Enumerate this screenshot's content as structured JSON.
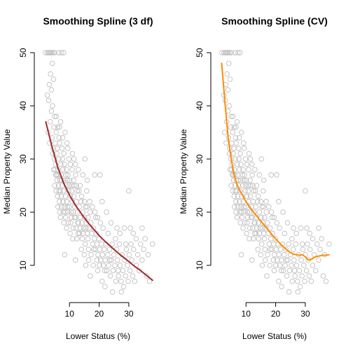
{
  "chart_data": [
    {
      "type": "scatter",
      "title": "Smoothing Spline (3 df)",
      "xlabel": "Lower Status (%)",
      "ylabel": "Median Property Value",
      "xlim": [
        0.5,
        39
      ],
      "ylim": [
        3,
        52
      ],
      "x_ticks": [
        10,
        20,
        30
      ],
      "y_ticks": [
        10,
        20,
        30,
        40,
        50
      ],
      "grid": false,
      "point_color": "#bebebe",
      "series": [
        {
          "type": "line",
          "color": "#a52a2a",
          "x": [
            2,
            4,
            6,
            8,
            10,
            12,
            14,
            16,
            18,
            20,
            22,
            24,
            26,
            28,
            30,
            32,
            34,
            36,
            38
          ],
          "y": [
            37.0,
            32.5,
            28.5,
            25.5,
            23.2,
            21.3,
            19.7,
            18.2,
            16.9,
            15.6,
            14.5,
            13.5,
            12.5,
            11.6,
            10.7,
            9.8,
            9.0,
            8.1,
            7.2
          ]
        }
      ]
    },
    {
      "type": "scatter",
      "title": "Smoothing Spline (CV)",
      "xlabel": "Lower Status (%)",
      "ylabel": "Median Property Value",
      "xlim": [
        0.5,
        39
      ],
      "ylim": [
        3,
        52
      ],
      "x_ticks": [
        10,
        20,
        30
      ],
      "y_ticks": [
        10,
        20,
        30,
        40,
        50
      ],
      "grid": false,
      "point_color": "#bebebe",
      "series": [
        {
          "type": "line",
          "color": "#ff8c00",
          "x": [
            1.8,
            3,
            4,
            5,
            6,
            7,
            8,
            9,
            10,
            11,
            12,
            13,
            14,
            15,
            16,
            17,
            18,
            19,
            20,
            21,
            22,
            23,
            24,
            25,
            26,
            27,
            28,
            29,
            30,
            31,
            32,
            33,
            34,
            35,
            36,
            37,
            38
          ],
          "y": [
            48.0,
            40.0,
            34.0,
            30.0,
            27.0,
            25.2,
            24.0,
            23.0,
            22.0,
            21.2,
            20.4,
            19.7,
            19.0,
            18.3,
            17.7,
            17.0,
            16.3,
            15.6,
            15.0,
            14.4,
            13.8,
            13.3,
            12.8,
            12.4,
            12.1,
            12.0,
            11.9,
            12.0,
            11.6,
            11.0,
            11.1,
            11.5,
            11.7,
            11.8,
            11.9,
            11.9,
            12.0
          ]
        }
      ]
    }
  ],
  "scatter_points": [
    [
      1.9,
      50
    ],
    [
      2.6,
      50
    ],
    [
      3.0,
      50
    ],
    [
      3.3,
      50
    ],
    [
      3.7,
      50
    ],
    [
      4.0,
      50
    ],
    [
      4.5,
      50
    ],
    [
      5.0,
      50
    ],
    [
      6.3,
      50
    ],
    [
      7.3,
      50
    ],
    [
      8.0,
      50
    ],
    [
      2.5,
      42
    ],
    [
      3.0,
      41
    ],
    [
      3.2,
      44
    ],
    [
      3.6,
      46
    ],
    [
      3.9,
      43
    ],
    [
      4.2,
      48
    ],
    [
      4.6,
      45
    ],
    [
      5.0,
      38
    ],
    [
      3.5,
      37
    ],
    [
      4.8,
      36
    ],
    [
      5.5,
      35
    ],
    [
      2.8,
      35
    ],
    [
      3.3,
      33
    ],
    [
      4.1,
      34
    ],
    [
      4.5,
      32
    ],
    [
      5.2,
      33
    ],
    [
      5.7,
      31
    ],
    [
      6.0,
      36
    ],
    [
      6.5,
      34
    ],
    [
      7.0,
      37
    ],
    [
      7.5,
      32
    ],
    [
      8.1,
      31
    ],
    [
      8.5,
      35
    ],
    [
      9.2,
      33
    ],
    [
      9.8,
      30
    ],
    [
      4.9,
      30
    ],
    [
      5.3,
      29
    ],
    [
      6.1,
      28
    ],
    [
      6.4,
      30
    ],
    [
      7.1,
      29
    ],
    [
      7.8,
      28
    ],
    [
      8.3,
      29
    ],
    [
      9.0,
      28
    ],
    [
      9.5,
      27
    ],
    [
      10.3,
      29
    ],
    [
      11.0,
      31
    ],
    [
      11.5,
      30
    ],
    [
      12.1,
      27
    ],
    [
      13.0,
      28
    ],
    [
      14.5,
      27
    ],
    [
      15.2,
      30
    ],
    [
      16.0,
      26
    ],
    [
      18.5,
      27
    ],
    [
      5.0,
      25
    ],
    [
      5.5,
      24
    ],
    [
      5.8,
      26
    ],
    [
      6.0,
      23
    ],
    [
      6.3,
      25
    ],
    [
      6.6,
      22
    ],
    [
      6.9,
      24
    ],
    [
      7.2,
      23
    ],
    [
      7.5,
      25
    ],
    [
      7.8,
      22
    ],
    [
      8.0,
      24
    ],
    [
      8.3,
      21
    ],
    [
      8.6,
      23
    ],
    [
      8.9,
      25
    ],
    [
      9.1,
      22
    ],
    [
      9.4,
      20
    ],
    [
      9.7,
      24
    ],
    [
      10.0,
      21
    ],
    [
      10.3,
      23
    ],
    [
      10.6,
      19
    ],
    [
      10.9,
      22
    ],
    [
      11.2,
      20
    ],
    [
      11.5,
      23
    ],
    [
      11.8,
      21
    ],
    [
      12.1,
      19
    ],
    [
      12.4,
      22
    ],
    [
      12.7,
      20
    ],
    [
      13.0,
      18
    ],
    [
      13.3,
      21
    ],
    [
      13.6,
      19
    ],
    [
      13.9,
      22
    ],
    [
      14.2,
      18
    ],
    [
      14.5,
      20
    ],
    [
      14.8,
      17
    ],
    [
      15.1,
      19
    ],
    [
      15.4,
      21
    ],
    [
      15.7,
      18
    ],
    [
      16.0,
      16
    ],
    [
      16.3,
      19
    ],
    [
      16.6,
      17
    ],
    [
      16.9,
      20
    ],
    [
      5.7,
      27
    ],
    [
      6.2,
      27
    ],
    [
      6.8,
      26
    ],
    [
      7.4,
      26
    ],
    [
      8.2,
      26
    ],
    [
      9.3,
      26
    ],
    [
      10.1,
      26
    ],
    [
      10.8,
      25
    ],
    [
      11.6,
      25
    ],
    [
      12.6,
      24
    ],
    [
      6.1,
      21
    ],
    [
      6.7,
      20
    ],
    [
      7.3,
      21
    ],
    [
      7.9,
      20
    ],
    [
      8.7,
      19
    ],
    [
      9.6,
      18
    ],
    [
      10.4,
      18
    ],
    [
      11.3,
      17
    ],
    [
      12.2,
      17
    ],
    [
      12.9,
      16
    ],
    [
      7.0,
      19
    ],
    [
      8.1,
      18
    ],
    [
      9.0,
      17
    ],
    [
      10.2,
      16
    ],
    [
      11.1,
      15
    ],
    [
      12.5,
      15
    ],
    [
      13.4,
      16
    ],
    [
      14.3,
      15
    ],
    [
      15.3,
      14
    ],
    [
      16.2,
      15
    ],
    [
      17.2,
      18
    ],
    [
      17.5,
      16
    ],
    [
      17.8,
      14
    ],
    [
      18.1,
      17
    ],
    [
      18.4,
      15
    ],
    [
      18.7,
      13
    ],
    [
      19.0,
      16
    ],
    [
      19.3,
      14
    ],
    [
      19.6,
      12
    ],
    [
      19.9,
      15
    ],
    [
      20.2,
      13
    ],
    [
      20.5,
      11
    ],
    [
      20.8,
      14
    ],
    [
      21.1,
      12
    ],
    [
      21.4,
      10
    ],
    [
      21.7,
      13
    ],
    [
      22.0,
      11
    ],
    [
      22.3,
      14
    ],
    [
      22.6,
      9
    ],
    [
      22.9,
      12
    ],
    [
      23.2,
      10
    ],
    [
      23.5,
      13
    ],
    [
      23.8,
      8
    ],
    [
      24.1,
      11
    ],
    [
      24.4,
      14
    ],
    [
      24.7,
      9
    ],
    [
      25.0,
      12
    ],
    [
      25.3,
      10
    ],
    [
      25.6,
      7
    ],
    [
      25.9,
      13
    ],
    [
      26.2,
      11
    ],
    [
      26.5,
      8
    ],
    [
      26.8,
      14
    ],
    [
      27.1,
      10
    ],
    [
      27.4,
      7
    ],
    [
      27.7,
      12
    ],
    [
      28.0,
      9
    ],
    [
      28.3,
      6
    ],
    [
      28.6,
      11
    ],
    [
      28.9,
      8
    ],
    [
      29.2,
      13
    ],
    [
      29.5,
      10
    ],
    [
      29.8,
      7
    ],
    [
      30.1,
      12
    ],
    [
      30.4,
      9
    ],
    [
      30.7,
      14
    ],
    [
      31.0,
      11
    ],
    [
      31.3,
      8
    ],
    [
      31.6,
      13
    ],
    [
      32.0,
      7
    ],
    [
      32.5,
      10
    ],
    [
      33.0,
      12
    ],
    [
      33.5,
      9
    ],
    [
      34.0,
      14
    ],
    [
      34.5,
      11
    ],
    [
      35.0,
      13
    ],
    [
      36.0,
      8
    ],
    [
      37.0,
      7
    ],
    [
      38.0,
      14
    ],
    [
      30.0,
      24
    ],
    [
      20.3,
      27
    ],
    [
      21.0,
      22
    ],
    [
      22.5,
      20
    ],
    [
      24.0,
      18
    ],
    [
      26.0,
      17
    ],
    [
      27.0,
      16
    ],
    [
      28.5,
      17
    ],
    [
      30.5,
      17
    ],
    [
      32.5,
      15
    ],
    [
      35.5,
      15
    ],
    [
      14.0,
      13
    ],
    [
      15.0,
      12
    ],
    [
      16.5,
      11
    ],
    [
      18.0,
      10
    ],
    [
      19.5,
      9
    ],
    [
      17.0,
      8
    ],
    [
      21.0,
      7
    ],
    [
      22.0,
      6
    ],
    [
      24.5,
      5
    ],
    [
      27.5,
      5
    ],
    [
      13.2,
      24
    ],
    [
      14.1,
      23
    ],
    [
      15.0,
      22
    ],
    [
      15.9,
      21
    ],
    [
      16.8,
      22
    ],
    [
      17.7,
      21
    ],
    [
      18.6,
      20
    ],
    [
      19.5,
      19
    ],
    [
      20.4,
      18
    ],
    [
      21.3,
      17
    ],
    [
      8.4,
      12
    ],
    [
      12.0,
      11
    ],
    [
      15.5,
      10
    ],
    [
      18.8,
      19
    ],
    [
      23.0,
      16
    ],
    [
      25.5,
      15
    ],
    [
      29.0,
      14
    ],
    [
      31.5,
      16
    ],
    [
      34.5,
      17
    ],
    [
      36.5,
      12
    ],
    [
      4.4,
      31
    ],
    [
      5.1,
      28
    ],
    [
      5.9,
      32
    ],
    [
      6.7,
      33
    ],
    [
      7.6,
      30
    ],
    [
      8.8,
      27
    ],
    [
      9.9,
      25
    ],
    [
      10.7,
      24
    ],
    [
      11.4,
      26
    ],
    [
      12.3,
      25
    ],
    [
      4.6,
      28
    ],
    [
      5.4,
      27
    ],
    [
      6.4,
      24
    ],
    [
      7.2,
      27
    ],
    [
      8.5,
      20
    ],
    [
      9.3,
      21
    ],
    [
      10.5,
      20
    ],
    [
      11.7,
      19
    ],
    [
      12.8,
      18
    ],
    [
      13.7,
      17
    ],
    [
      14.6,
      16
    ],
    [
      15.6,
      17
    ],
    [
      16.4,
      13
    ],
    [
      17.3,
      12
    ],
    [
      18.2,
      13
    ],
    [
      19.2,
      11
    ],
    [
      20.1,
      10
    ],
    [
      21.9,
      9
    ],
    [
      23.6,
      11
    ],
    [
      26.4,
      9
    ],
    [
      3.9,
      39
    ],
    [
      4.3,
      40
    ],
    [
      5.6,
      38
    ],
    [
      6.6,
      36
    ],
    [
      7.7,
      34
    ],
    [
      9.4,
      32
    ],
    [
      10.9,
      28
    ],
    [
      12.0,
      29
    ],
    [
      13.6,
      25
    ],
    [
      15.8,
      24
    ]
  ]
}
